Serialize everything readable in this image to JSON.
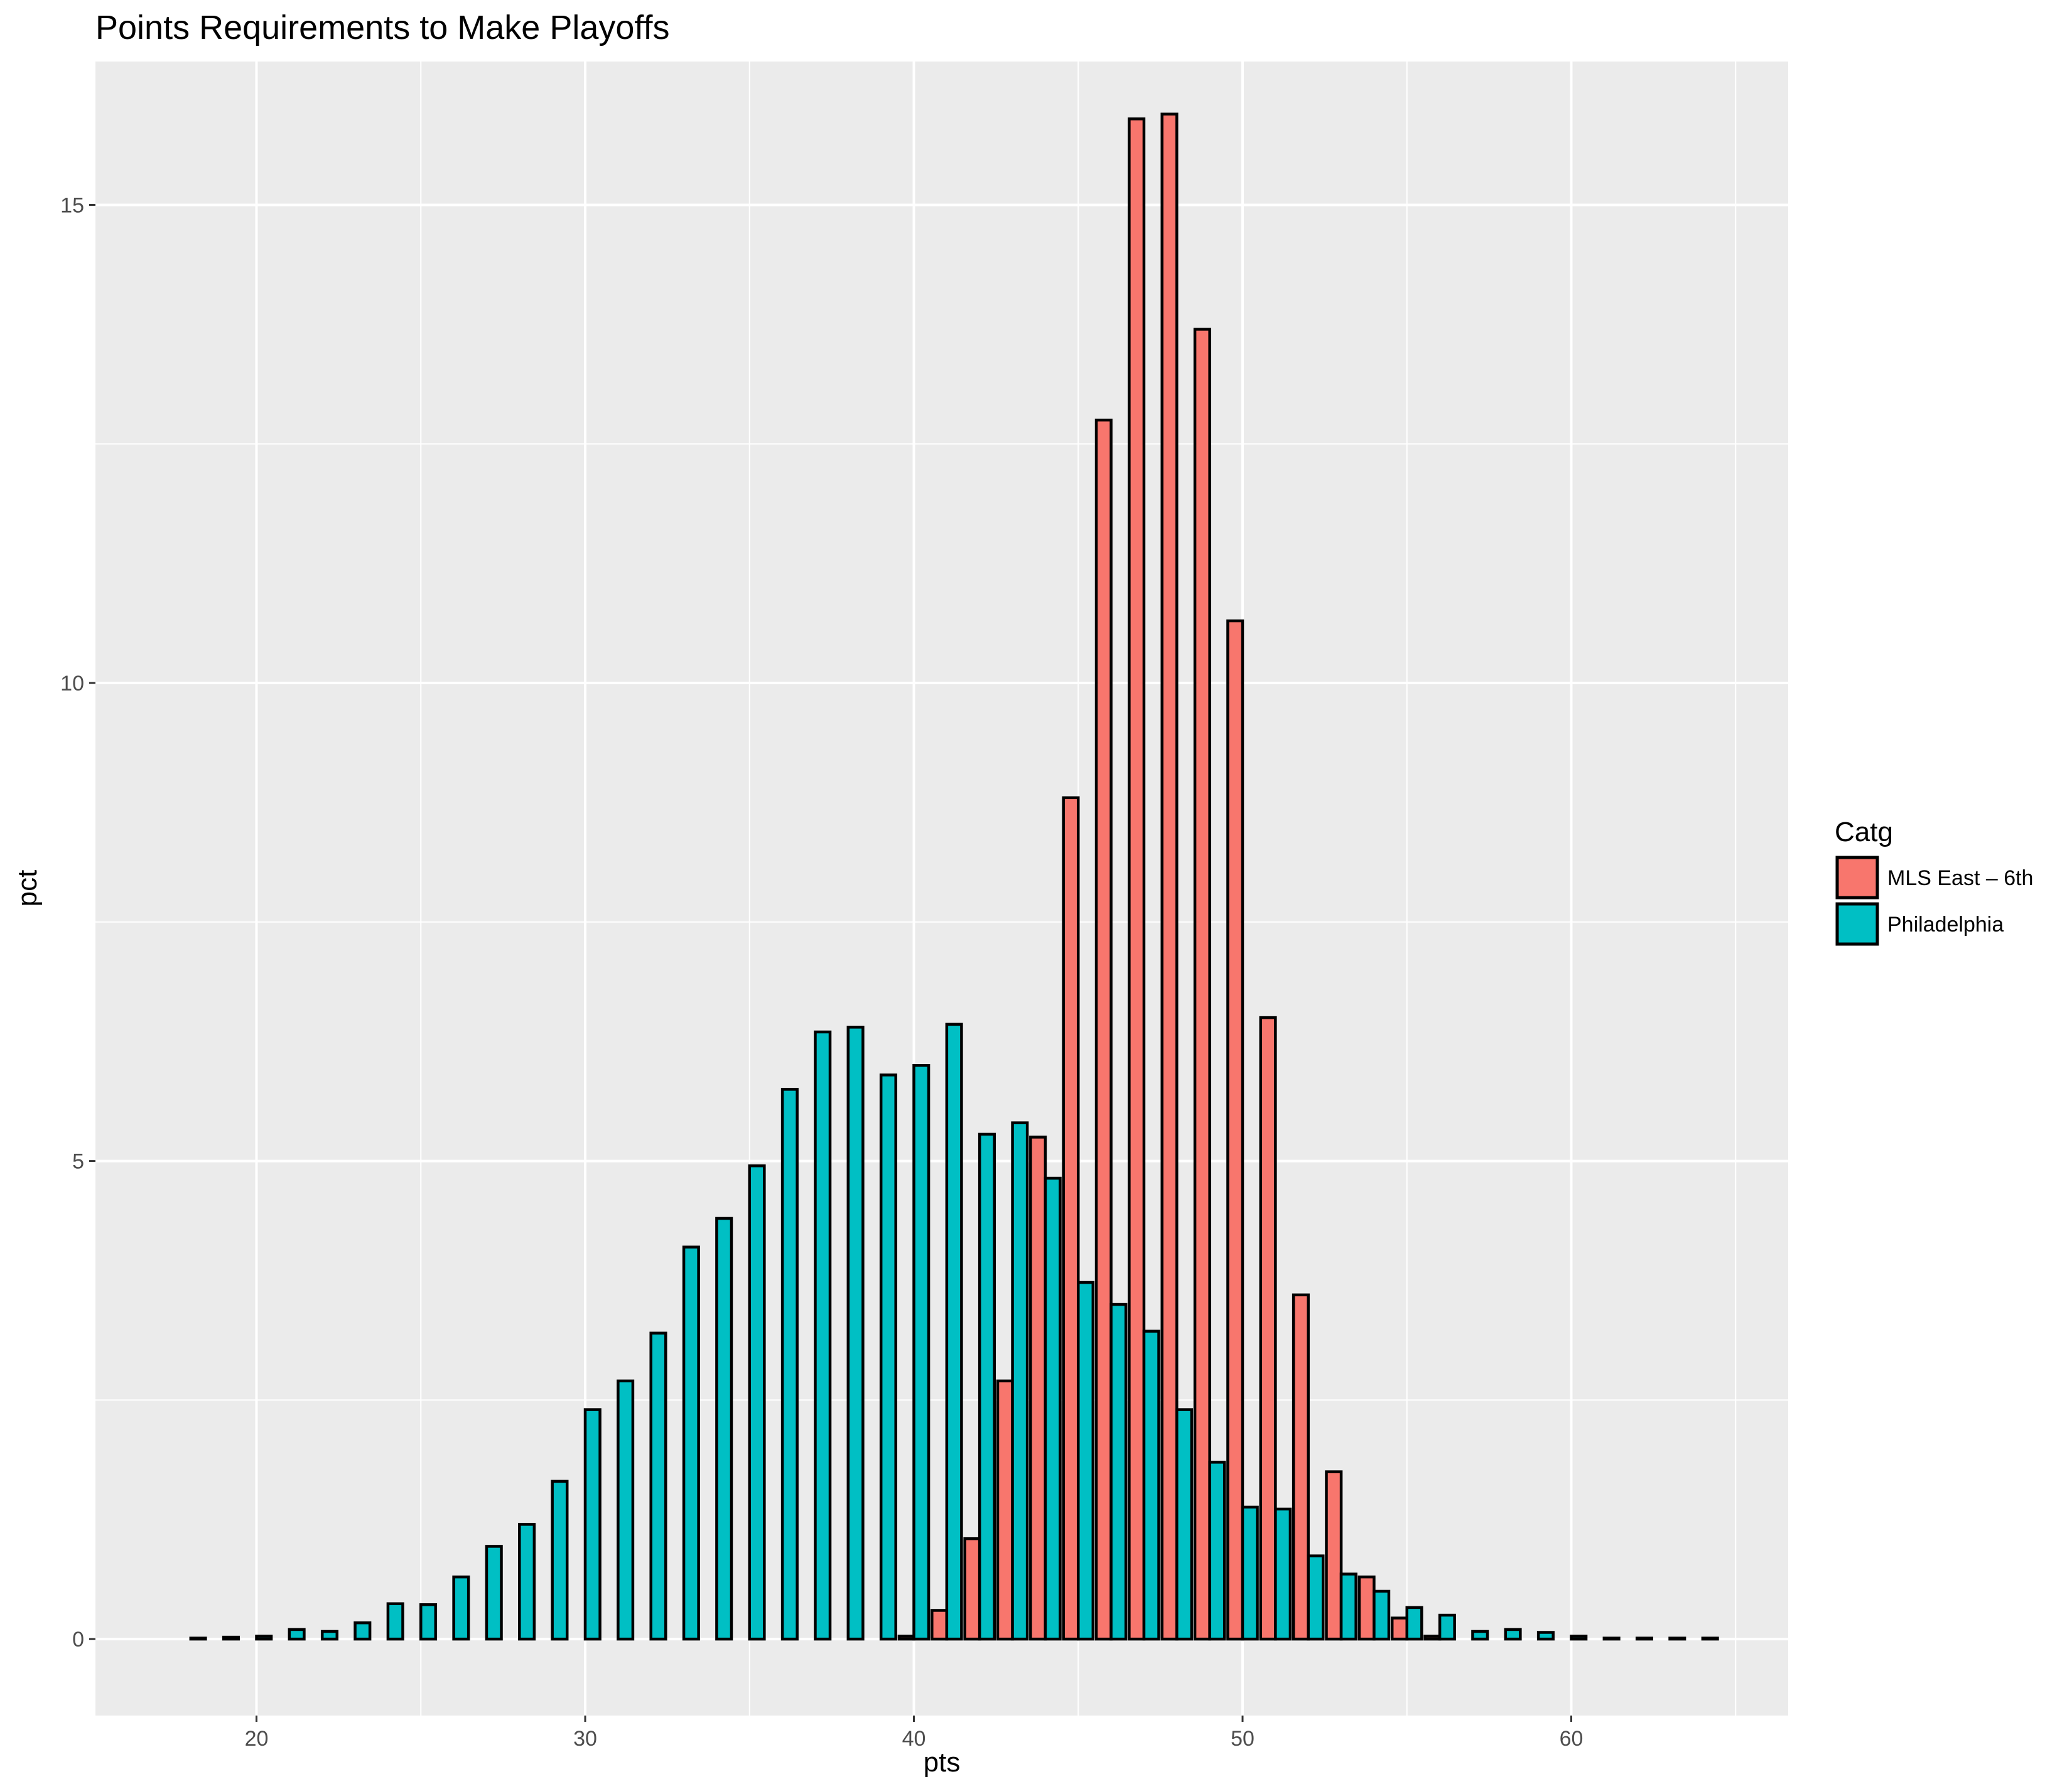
{
  "chart_data": {
    "type": "bar",
    "title": "Points Requirements to Make Playoffs",
    "xlabel": "pts",
    "ylabel": "pct",
    "xlim": [
      15.1,
      66.6
    ],
    "ylim": [
      -0.8,
      16.5
    ],
    "x_ticks": [
      20,
      30,
      40,
      50,
      60
    ],
    "y_ticks": [
      0,
      5,
      10,
      15
    ],
    "grid": true,
    "legend": {
      "title": "Catg",
      "position": "right"
    },
    "x": [
      18,
      19,
      20,
      21,
      22,
      23,
      24,
      25,
      26,
      27,
      28,
      29,
      30,
      31,
      32,
      33,
      34,
      35,
      36,
      37,
      38,
      39,
      40,
      41,
      42,
      43,
      44,
      45,
      46,
      47,
      48,
      49,
      50,
      51,
      52,
      53,
      54,
      55,
      56,
      57,
      58,
      59,
      60,
      61,
      62,
      63,
      64
    ],
    "series": [
      {
        "name": "MLS East – 6th",
        "color": "#F8766D",
        "values": [
          0,
          0,
          0,
          0,
          0,
          0,
          0,
          0,
          0,
          0,
          0,
          0,
          0,
          0,
          0,
          0,
          0,
          0,
          0,
          0,
          0,
          0,
          0.03,
          0.3,
          1.05,
          2.7,
          5.25,
          8.8,
          12.75,
          15.9,
          15.95,
          13.7,
          10.65,
          6.5,
          3.6,
          1.75,
          0.65,
          0.22,
          0.03,
          0,
          0,
          0,
          0,
          0,
          0,
          0,
          0
        ]
      },
      {
        "name": "Philadelphia",
        "color": "#00BFC4",
        "values": [
          0.01,
          0.02,
          0.03,
          0.1,
          0.08,
          0.17,
          0.37,
          0.36,
          0.65,
          0.97,
          1.2,
          1.65,
          2.4,
          2.7,
          3.2,
          4.1,
          4.4,
          4.95,
          5.75,
          6.35,
          6.4,
          5.9,
          6.0,
          6.43,
          5.28,
          5.4,
          4.82,
          3.73,
          3.5,
          3.22,
          2.4,
          1.85,
          1.38,
          1.36,
          0.87,
          0.68,
          0.5,
          0.33,
          0.25,
          0.08,
          0.1,
          0.07,
          0.03,
          0.01,
          0.01,
          0.01,
          0.01
        ]
      }
    ]
  }
}
